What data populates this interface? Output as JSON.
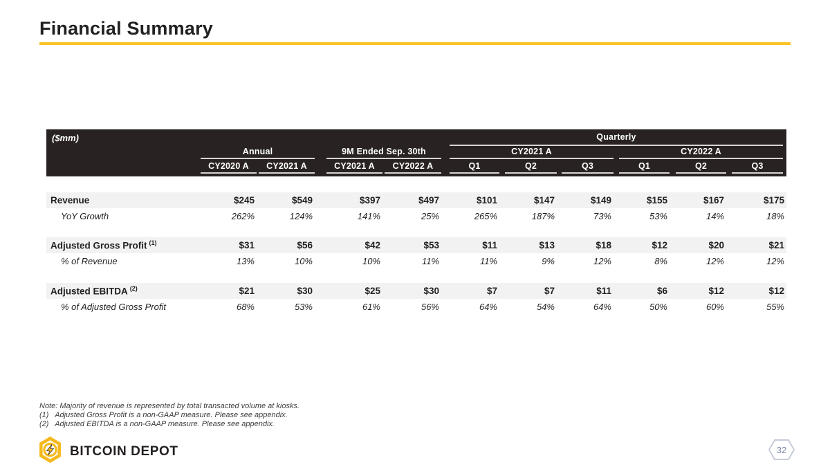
{
  "slide": {
    "title": "Financial Summary",
    "page_number": "32",
    "accent_color": "#FBC42A",
    "header_bar_color": "#282322"
  },
  "table": {
    "unit_label": "($mm)",
    "groups": {
      "quarterly": "Quarterly",
      "annual": "Annual",
      "nine_month": "9M Ended Sep. 30th",
      "cy2021": "CY2021 A",
      "cy2022": "CY2022 A"
    },
    "columns": [
      "CY2020 A",
      "CY2021 A",
      "CY2021 A",
      "CY2022 A",
      "Q1",
      "Q2",
      "Q3",
      "Q1",
      "Q2",
      "Q3"
    ],
    "rows": [
      {
        "label": "Revenue",
        "sup": "",
        "style": "primary",
        "spacer": "",
        "values": [
          "$245",
          "$549",
          "$397",
          "$497",
          "$101",
          "$147",
          "$149",
          "$155",
          "$167",
          "$175"
        ]
      },
      {
        "label": "YoY Growth",
        "sup": "",
        "style": "secondary",
        "spacer": "",
        "values": [
          "262%",
          "124%",
          "141%",
          "25%",
          "265%",
          "187%",
          "73%",
          "53%",
          "14%",
          "18%"
        ]
      },
      {
        "label": "Adjusted Gross Profit",
        "sup": "(1)",
        "style": "primary",
        "spacer": "a",
        "values": [
          "$31",
          "$56",
          "$42",
          "$53",
          "$11",
          "$13",
          "$18",
          "$12",
          "$20",
          "$21"
        ]
      },
      {
        "label": "% of Revenue",
        "sup": "",
        "style": "secondary",
        "spacer": "",
        "values": [
          "13%",
          "10%",
          "10%",
          "11%",
          "11%",
          "9%",
          "12%",
          "8%",
          "12%",
          "12%"
        ]
      },
      {
        "label": "Adjusted EBITDA",
        "sup": "(2)",
        "style": "primary",
        "spacer": "b",
        "values": [
          "$21",
          "$30",
          "$25",
          "$30",
          "$7",
          "$7",
          "$11",
          "$6",
          "$12",
          "$12"
        ]
      },
      {
        "label": "% of Adjusted Gross Profit",
        "sup": "",
        "style": "secondary",
        "spacer": "",
        "values": [
          "68%",
          "53%",
          "61%",
          "56%",
          "64%",
          "54%",
          "64%",
          "50%",
          "60%",
          "55%"
        ]
      }
    ]
  },
  "notes": [
    "Note: Majority of revenue is represented by total transacted volume at kiosks.",
    "(1)   Adjusted Gross Profit is a non-GAAP measure. Please see appendix.",
    "(2)   Adjusted EBITDA is a non-GAAP measure. Please see appendix."
  ],
  "footer": {
    "brand": "BITCOIN DEPOT"
  }
}
